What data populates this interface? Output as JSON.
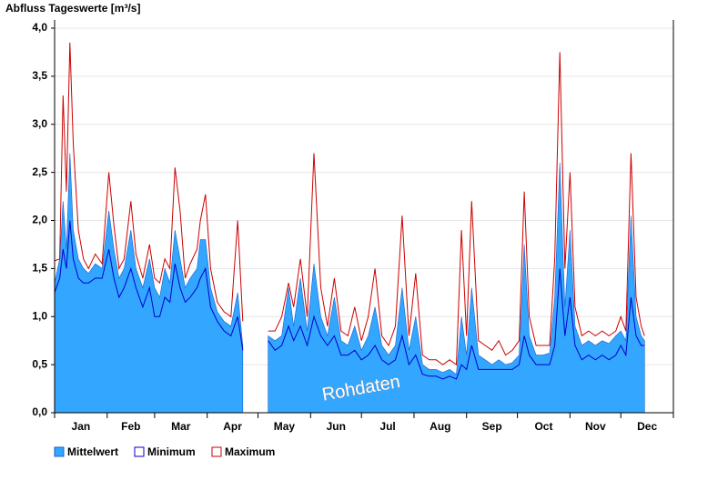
{
  "chart_data": {
    "type": "area",
    "title": "Abfluss Tageswerte [m³/s]",
    "annotation": "Rohdaten",
    "xlim": [
      0,
      365
    ],
    "xticks": [
      {
        "value": 15.5,
        "label": "Jan"
      },
      {
        "value": 45,
        "label": "Feb"
      },
      {
        "value": 74.5,
        "label": "Mar"
      },
      {
        "value": 105,
        "label": "Apr"
      },
      {
        "value": 135.5,
        "label": "May"
      },
      {
        "value": 166,
        "label": "Jun"
      },
      {
        "value": 196.5,
        "label": "Jul"
      },
      {
        "value": 227.5,
        "label": "Aug"
      },
      {
        "value": 258,
        "label": "Sep"
      },
      {
        "value": 288.5,
        "label": "Oct"
      },
      {
        "value": 319,
        "label": "Nov"
      },
      {
        "value": 349.5,
        "label": "Dec"
      }
    ],
    "xminor_ticks": [
      0,
      31,
      59,
      90,
      120,
      151,
      181,
      212,
      243,
      273,
      304,
      334,
      365
    ],
    "ylim": [
      0,
      4
    ],
    "yticks": [
      {
        "value": 0,
        "label": "0,0"
      },
      {
        "value": 0.5,
        "label": "0,5"
      },
      {
        "value": 1,
        "label": "1,0"
      },
      {
        "value": 1.5,
        "label": "1,5"
      },
      {
        "value": 2,
        "label": "2,0"
      },
      {
        "value": 2.5,
        "label": "2,5"
      },
      {
        "value": 3,
        "label": "3,0"
      },
      {
        "value": 3.5,
        "label": "3,5"
      },
      {
        "value": 4,
        "label": "4,0"
      }
    ],
    "grid": true,
    "x": [
      0,
      3,
      5,
      7,
      9,
      11,
      14,
      17,
      20,
      24,
      28,
      32,
      35,
      38,
      41,
      45,
      48,
      52,
      56,
      59,
      62,
      65,
      68,
      71,
      74,
      77,
      80,
      84,
      86,
      89,
      92,
      96,
      100,
      104,
      108,
      111,
      118,
      126,
      130,
      134,
      138,
      141,
      145,
      149,
      153,
      157,
      161,
      165,
      169,
      173,
      177,
      181,
      185,
      189,
      193,
      197,
      201,
      205,
      209,
      213,
      217,
      221,
      225,
      229,
      233,
      237,
      240,
      243,
      246,
      250,
      254,
      258,
      262,
      266,
      270,
      274,
      277,
      280,
      284,
      288,
      292,
      295,
      298,
      301,
      304,
      307,
      311,
      315,
      319,
      323,
      327,
      331,
      334,
      337,
      340,
      343,
      346,
      348
    ],
    "series": [
      {
        "name": "Mittelwert",
        "type": "area",
        "color": "#33a6ff",
        "values": [
          1.35,
          1.6,
          2.2,
          1.7,
          2.7,
          1.9,
          1.6,
          1.5,
          1.45,
          1.55,
          1.5,
          2.1,
          1.7,
          1.4,
          1.5,
          1.9,
          1.5,
          1.3,
          1.6,
          1.3,
          1.2,
          1.5,
          1.35,
          1.9,
          1.6,
          1.3,
          1.4,
          1.5,
          1.8,
          1.8,
          1.3,
          1.05,
          0.95,
          0.9,
          1.25,
          0.7,
          null,
          0.8,
          0.75,
          0.8,
          1.3,
          0.9,
          1.4,
          0.85,
          1.55,
          1.0,
          0.8,
          1.2,
          0.75,
          0.7,
          0.9,
          0.65,
          0.8,
          1.1,
          0.7,
          0.6,
          0.7,
          1.3,
          0.65,
          1.0,
          0.5,
          0.45,
          0.45,
          0.42,
          0.45,
          0.4,
          1.0,
          0.6,
          1.3,
          0.6,
          0.55,
          0.5,
          0.55,
          0.5,
          0.52,
          0.6,
          1.75,
          0.8,
          0.6,
          0.6,
          0.62,
          1.2,
          2.6,
          1.1,
          1.9,
          0.9,
          0.7,
          0.75,
          0.7,
          0.75,
          0.72,
          0.8,
          0.85,
          0.75,
          2.05,
          1.0,
          0.8,
          0.75
        ]
      },
      {
        "name": "Minimum",
        "type": "line",
        "color": "#0000cc",
        "values": [
          1.25,
          1.4,
          1.7,
          1.5,
          2.0,
          1.6,
          1.4,
          1.35,
          1.35,
          1.4,
          1.4,
          1.7,
          1.4,
          1.2,
          1.3,
          1.5,
          1.3,
          1.1,
          1.3,
          1.0,
          1.0,
          1.2,
          1.15,
          1.55,
          1.3,
          1.15,
          1.2,
          1.3,
          1.4,
          1.5,
          1.1,
          0.95,
          0.85,
          0.8,
          1.0,
          0.65,
          null,
          0.75,
          0.65,
          0.7,
          0.9,
          0.75,
          0.9,
          0.7,
          1.0,
          0.8,
          0.7,
          0.8,
          0.6,
          0.6,
          0.65,
          0.55,
          0.6,
          0.7,
          0.55,
          0.5,
          0.55,
          0.8,
          0.5,
          0.6,
          0.4,
          0.38,
          0.38,
          0.35,
          0.38,
          0.35,
          0.5,
          0.45,
          0.7,
          0.45,
          0.45,
          0.45,
          0.45,
          0.45,
          0.45,
          0.5,
          0.8,
          0.6,
          0.5,
          0.5,
          0.5,
          0.7,
          1.5,
          0.8,
          1.2,
          0.7,
          0.55,
          0.6,
          0.55,
          0.6,
          0.55,
          0.6,
          0.7,
          0.6,
          1.2,
          0.8,
          0.7,
          0.7
        ]
      },
      {
        "name": "Maximum",
        "type": "line",
        "color": "#cc0000",
        "values": [
          1.58,
          1.6,
          3.3,
          2.3,
          3.85,
          2.8,
          1.9,
          1.6,
          1.5,
          1.65,
          1.55,
          2.5,
          1.95,
          1.5,
          1.6,
          2.2,
          1.65,
          1.4,
          1.75,
          1.4,
          1.35,
          1.6,
          1.5,
          2.55,
          2.1,
          1.4,
          1.55,
          1.7,
          2.0,
          2.27,
          1.5,
          1.15,
          1.05,
          1.0,
          2.0,
          0.95,
          null,
          0.85,
          0.85,
          1.0,
          1.35,
          1.1,
          1.6,
          1.0,
          2.7,
          1.3,
          0.9,
          1.4,
          0.85,
          0.8,
          1.1,
          0.75,
          1.0,
          1.5,
          0.8,
          0.7,
          0.9,
          2.05,
          0.8,
          1.45,
          0.6,
          0.55,
          0.55,
          0.5,
          0.55,
          0.5,
          1.9,
          0.8,
          2.2,
          0.75,
          0.7,
          0.65,
          0.75,
          0.6,
          0.65,
          0.75,
          2.3,
          1.0,
          0.7,
          0.7,
          0.7,
          1.6,
          3.75,
          1.5,
          2.5,
          1.1,
          0.8,
          0.85,
          0.8,
          0.85,
          0.8,
          0.85,
          1.0,
          0.85,
          2.7,
          1.2,
          0.9,
          0.8
        ]
      }
    ]
  }
}
